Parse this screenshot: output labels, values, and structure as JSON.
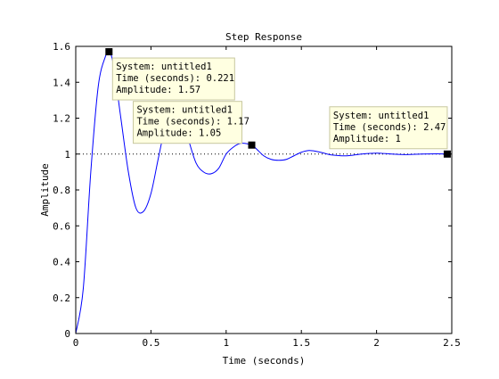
{
  "chart_data": {
    "type": "line",
    "title": "Step Response",
    "xlabel": "Time (seconds)",
    "ylabel": "Amplitude",
    "xlim": [
      0,
      2.5
    ],
    "ylim": [
      0,
      1.6
    ],
    "xticks": [
      "0",
      "0.5",
      "1",
      "1.5",
      "2",
      "2.5"
    ],
    "yticks": [
      "0",
      "0.2",
      "0.4",
      "0.6",
      "0.8",
      "1",
      "1.2",
      "1.4",
      "1.6"
    ],
    "grid": false,
    "reference_line": {
      "y": 1,
      "style": "dotted"
    },
    "series": [
      {
        "color": "#0000ff",
        "x": [
          0,
          0.05,
          0.1,
          0.15,
          0.2,
          0.221,
          0.25,
          0.3,
          0.35,
          0.4,
          0.45,
          0.5,
          0.55,
          0.6,
          0.65,
          0.7,
          0.75,
          0.8,
          0.85,
          0.9,
          0.95,
          1.0,
          1.05,
          1.1,
          1.17,
          1.2,
          1.25,
          1.3,
          1.35,
          1.4,
          1.45,
          1.5,
          1.55,
          1.6,
          1.65,
          1.7,
          1.8,
          1.9,
          2.0,
          2.1,
          2.2,
          2.3,
          2.4,
          2.47
        ],
        "y": [
          0,
          0.25,
          0.9,
          1.38,
          1.55,
          1.57,
          1.5,
          1.2,
          0.9,
          0.7,
          0.68,
          0.78,
          0.98,
          1.17,
          1.27,
          1.24,
          1.08,
          0.95,
          0.9,
          0.89,
          0.92,
          1.0,
          1.04,
          1.06,
          1.05,
          1.03,
          0.99,
          0.97,
          0.965,
          0.97,
          0.99,
          1.01,
          1.02,
          1.015,
          1.005,
          0.995,
          0.99,
          1.0,
          1.005,
          1.0,
          0.997,
          1.0,
          1.001,
          1.0
        ]
      }
    ],
    "datatips": [
      {
        "x": 0.221,
        "y": 1.57,
        "lines": [
          "System: untitled1",
          "Time (seconds): 0.221",
          "Amplitude: 1.57"
        ]
      },
      {
        "x": 1.17,
        "y": 1.05,
        "lines": [
          "System: untitled1",
          "Time (seconds): 1.17",
          "Amplitude: 1.05"
        ]
      },
      {
        "x": 2.47,
        "y": 1.0,
        "lines": [
          "System: untitled1",
          "Time (seconds): 2.47",
          "Amplitude: 1"
        ]
      }
    ]
  }
}
